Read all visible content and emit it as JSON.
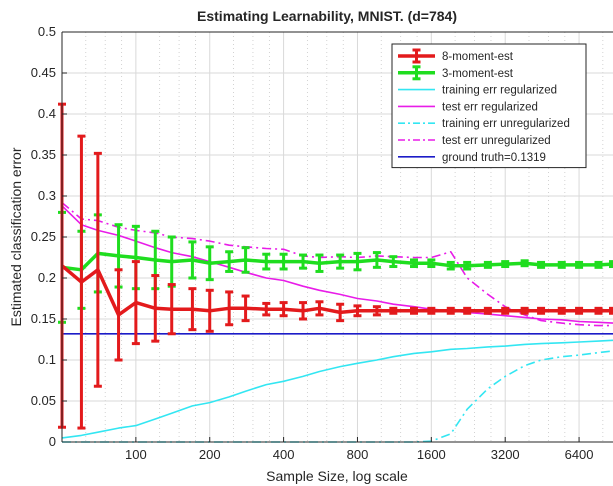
{
  "chart_data": {
    "type": "line",
    "title": "Estimating Learnability, MNIST. (d=784)",
    "xlabel": "Sample Size, log scale",
    "ylabel": "Estimated classification error",
    "x_scale": "log2",
    "xlim": [
      50,
      8800
    ],
    "ylim": [
      0,
      0.5
    ],
    "grid": true,
    "legend_position": "top-right",
    "x_ticks": [
      100,
      200,
      400,
      800,
      1600,
      3200,
      6400
    ],
    "x_tick_labels": [
      "100",
      "200",
      "400",
      "800",
      "1600",
      "3200",
      "6400"
    ],
    "y_ticks": [
      0,
      0.05,
      0.1,
      0.15,
      0.2,
      0.25,
      0.3,
      0.35,
      0.4,
      0.45,
      0.5
    ],
    "y_tick_labels": [
      "0",
      "0.05",
      "0.1",
      "0.15",
      "0.2",
      "0.25",
      "0.3",
      "0.35",
      "0.4",
      "0.45",
      "0.5"
    ],
    "series": [
      {
        "name": "8-moment-est",
        "style": "errorbar",
        "color": "#e31a1c",
        "x": [
          50,
          60,
          70,
          85,
          100,
          120,
          140,
          170,
          200,
          240,
          280,
          340,
          400,
          480,
          560,
          680,
          800,
          960,
          1120,
          1360,
          1600,
          1920,
          2240,
          2720,
          3200,
          3840,
          4480,
          5440,
          6400,
          7680,
          8800
        ],
        "y": [
          0.215,
          0.195,
          0.21,
          0.155,
          0.17,
          0.163,
          0.162,
          0.162,
          0.16,
          0.163,
          0.163,
          0.162,
          0.162,
          0.16,
          0.163,
          0.158,
          0.16,
          0.16,
          0.16,
          0.16,
          0.16,
          0.16,
          0.16,
          0.16,
          0.16,
          0.16,
          0.16,
          0.16,
          0.16,
          0.16,
          0.16
        ],
        "err": [
          0.197,
          0.178,
          0.142,
          0.055,
          0.05,
          0.04,
          0.03,
          0.025,
          0.025,
          0.02,
          0.015,
          0.007,
          0.008,
          0.01,
          0.008,
          0.01,
          0.006,
          0.005,
          0.003,
          0.003,
          0.003,
          0.003,
          0.003,
          0.003,
          0.003,
          0.003,
          0.003,
          0.003,
          0.003,
          0.003,
          0.003
        ]
      },
      {
        "name": "3-moment-est",
        "style": "errorbar",
        "color": "#1fdd1f",
        "x": [
          50,
          60,
          70,
          85,
          100,
          120,
          140,
          170,
          200,
          240,
          280,
          340,
          400,
          480,
          560,
          680,
          800,
          960,
          1120,
          1360,
          1600,
          1920,
          2240,
          2720,
          3200,
          3840,
          4480,
          5440,
          6400,
          7680,
          8800
        ],
        "y": [
          0.213,
          0.21,
          0.23,
          0.227,
          0.225,
          0.222,
          0.22,
          0.222,
          0.218,
          0.22,
          0.222,
          0.22,
          0.22,
          0.22,
          0.218,
          0.22,
          0.22,
          0.222,
          0.22,
          0.218,
          0.218,
          0.215,
          0.215,
          0.216,
          0.217,
          0.218,
          0.216,
          0.216,
          0.216,
          0.216,
          0.217
        ],
        "err": [
          0.067,
          0.047,
          0.047,
          0.038,
          0.038,
          0.035,
          0.03,
          0.022,
          0.02,
          0.012,
          0.015,
          0.009,
          0.009,
          0.008,
          0.01,
          0.008,
          0.01,
          0.009,
          0.006,
          0.004,
          0.004,
          0.004,
          0.004,
          0.003,
          0.003,
          0.003,
          0.003,
          0.003,
          0.003,
          0.003,
          0.003
        ]
      },
      {
        "name": "training err regularized",
        "style": "solid",
        "color": "#33e6f2",
        "x": [
          50,
          60,
          70,
          85,
          100,
          120,
          140,
          170,
          200,
          240,
          280,
          340,
          400,
          480,
          560,
          680,
          800,
          960,
          1120,
          1360,
          1600,
          1920,
          2240,
          2720,
          3200,
          3840,
          4480,
          5440,
          6400,
          7680,
          8800
        ],
        "y": [
          0.005,
          0.008,
          0.012,
          0.017,
          0.02,
          0.028,
          0.035,
          0.044,
          0.048,
          0.055,
          0.062,
          0.07,
          0.074,
          0.08,
          0.086,
          0.092,
          0.096,
          0.1,
          0.104,
          0.108,
          0.11,
          0.113,
          0.114,
          0.116,
          0.117,
          0.119,
          0.12,
          0.121,
          0.122,
          0.123,
          0.124
        ]
      },
      {
        "name": "test err regularized",
        "style": "solid",
        "color": "#e81ce8",
        "x": [
          50,
          60,
          70,
          85,
          100,
          120,
          140,
          170,
          200,
          240,
          280,
          340,
          400,
          480,
          560,
          680,
          800,
          960,
          1120,
          1360,
          1600,
          1920,
          2240,
          2720,
          3200,
          3840,
          4480,
          5440,
          6400,
          7680,
          8800
        ],
        "y": [
          0.288,
          0.265,
          0.258,
          0.252,
          0.245,
          0.237,
          0.231,
          0.226,
          0.22,
          0.213,
          0.207,
          0.2,
          0.197,
          0.19,
          0.185,
          0.18,
          0.175,
          0.172,
          0.168,
          0.165,
          0.162,
          0.16,
          0.158,
          0.156,
          0.154,
          0.152,
          0.15,
          0.149,
          0.147,
          0.146,
          0.145
        ]
      },
      {
        "name": "training err unregularized",
        "style": "dashdot",
        "color": "#33e6f2",
        "x": [
          50,
          60,
          70,
          85,
          100,
          120,
          140,
          170,
          200,
          240,
          280,
          340,
          400,
          480,
          560,
          680,
          800,
          960,
          1120,
          1360,
          1600,
          1920,
          2240,
          2720,
          3200,
          3840,
          4480,
          5440,
          6400,
          7680,
          8800
        ],
        "y": [
          0.0,
          0.0,
          0.0,
          0.0,
          0.0,
          0.0,
          0.0,
          0.0,
          0.0,
          0.0,
          0.0,
          0.0,
          0.0,
          0.0,
          0.0,
          0.0,
          0.0,
          0.0,
          0.0,
          0.0,
          0.001,
          0.01,
          0.04,
          0.065,
          0.08,
          0.093,
          0.1,
          0.104,
          0.106,
          0.109,
          0.111
        ]
      },
      {
        "name": "test err unregularized",
        "style": "dashdot",
        "color": "#e81ce8",
        "x": [
          50,
          60,
          70,
          85,
          100,
          120,
          140,
          170,
          200,
          240,
          280,
          340,
          400,
          480,
          560,
          680,
          800,
          960,
          1120,
          1360,
          1600,
          1920,
          2240,
          2720,
          3200,
          3840,
          4480,
          5440,
          6400,
          7680,
          8800
        ],
        "y": [
          0.292,
          0.272,
          0.27,
          0.262,
          0.258,
          0.255,
          0.25,
          0.248,
          0.245,
          0.24,
          0.238,
          0.236,
          0.235,
          0.227,
          0.225,
          0.226,
          0.225,
          0.227,
          0.226,
          0.225,
          0.225,
          0.232,
          0.2,
          0.18,
          0.165,
          0.155,
          0.148,
          0.145,
          0.143,
          0.142,
          0.142
        ]
      },
      {
        "name": "ground truth=0.1319",
        "style": "solid",
        "color": "#1c1cc8",
        "x": [
          50,
          8800
        ],
        "y": [
          0.1319,
          0.1319
        ]
      }
    ]
  }
}
